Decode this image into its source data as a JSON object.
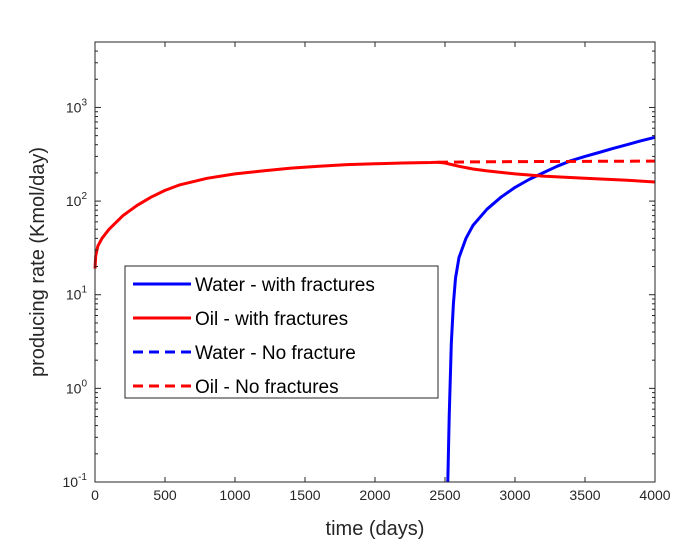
{
  "chart_data": {
    "type": "line",
    "title": "",
    "xlabel": "time (days)",
    "ylabel": "producing rate (Kmol/day)",
    "xlim": [
      0,
      4000
    ],
    "ylim": [
      0.1,
      5000
    ],
    "yscale": "log",
    "grid": false,
    "legend_position": "center-left",
    "x_ticks": [
      0,
      500,
      1000,
      1500,
      2000,
      2500,
      3000,
      3500,
      4000
    ],
    "x_tick_labels": [
      "0",
      "500",
      "1000",
      "1500",
      "2000",
      "2500",
      "3000",
      "3500",
      "4000"
    ],
    "y_ticks": [
      {
        "value": 0.1,
        "base": "10",
        "exp": "-1"
      },
      {
        "value": 1,
        "base": "10",
        "exp": "0"
      },
      {
        "value": 10,
        "base": "10",
        "exp": "1"
      },
      {
        "value": 100,
        "base": "10",
        "exp": "2"
      },
      {
        "value": 1000,
        "base": "10",
        "exp": "3"
      }
    ],
    "series": [
      {
        "name": "Water - with fractures",
        "color": "#0000ff",
        "style": "solid",
        "points": [
          [
            2520,
            0.1
          ],
          [
            2530,
            0.5
          ],
          [
            2545,
            3
          ],
          [
            2560,
            8
          ],
          [
            2575,
            15
          ],
          [
            2600,
            25
          ],
          [
            2650,
            40
          ],
          [
            2700,
            55
          ],
          [
            2800,
            82
          ],
          [
            2900,
            110
          ],
          [
            3000,
            140
          ],
          [
            3100,
            170
          ],
          [
            3200,
            200
          ],
          [
            3300,
            235
          ],
          [
            3400,
            270
          ],
          [
            3500,
            300
          ],
          [
            3600,
            330
          ],
          [
            3700,
            365
          ],
          [
            3800,
            400
          ],
          [
            3900,
            440
          ],
          [
            4000,
            480
          ]
        ]
      },
      {
        "name": "Oil - with fractures",
        "color": "#ff0000",
        "style": "solid",
        "points": [
          [
            0,
            19
          ],
          [
            5,
            26
          ],
          [
            20,
            33
          ],
          [
            50,
            40
          ],
          [
            100,
            50
          ],
          [
            200,
            70
          ],
          [
            300,
            90
          ],
          [
            400,
            110
          ],
          [
            500,
            130
          ],
          [
            600,
            148
          ],
          [
            800,
            175
          ],
          [
            1000,
            195
          ],
          [
            1200,
            210
          ],
          [
            1400,
            225
          ],
          [
            1600,
            235
          ],
          [
            1800,
            245
          ],
          [
            2000,
            250
          ],
          [
            2200,
            255
          ],
          [
            2400,
            258
          ],
          [
            2450,
            260
          ],
          [
            2500,
            255
          ],
          [
            2600,
            235
          ],
          [
            2700,
            220
          ],
          [
            2800,
            210
          ],
          [
            3000,
            195
          ],
          [
            3200,
            185
          ],
          [
            3500,
            175
          ],
          [
            3800,
            167
          ],
          [
            4000,
            160
          ]
        ]
      },
      {
        "name": "Water - No fracture",
        "color": "#0000ff",
        "style": "dashed",
        "points": []
      },
      {
        "name": "Oil - No fractures",
        "color": "#ff0000",
        "style": "dashed",
        "points": [
          [
            2450,
            260
          ],
          [
            2700,
            262
          ],
          [
            3000,
            264
          ],
          [
            3300,
            265
          ],
          [
            3600,
            266
          ],
          [
            4000,
            267
          ]
        ]
      }
    ]
  }
}
